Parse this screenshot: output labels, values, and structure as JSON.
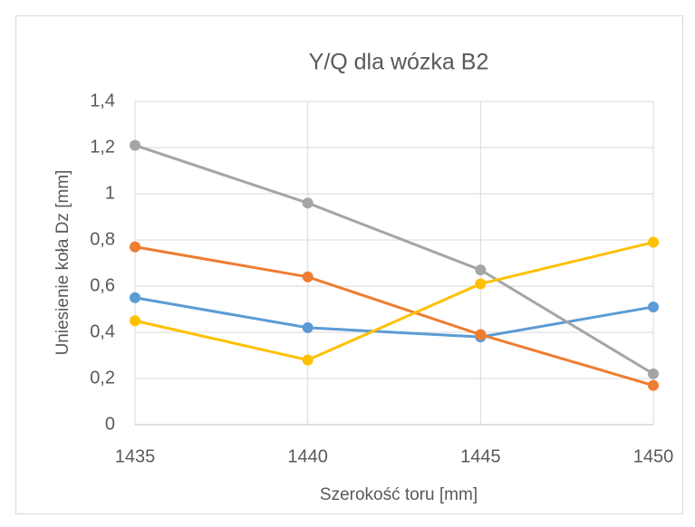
{
  "chart_data": {
    "type": "line",
    "title": "Y/Q dla wózka B2",
    "xlabel": "Szerokość toru [mm]",
    "ylabel": "Uniesienie koła Dz [mm]",
    "x": [
      1435,
      1440,
      1445,
      1450
    ],
    "xlim": [
      1435,
      1450
    ],
    "xticks": [
      1435,
      1440,
      1445,
      1450
    ],
    "ylim": [
      0,
      1.4
    ],
    "yticks": [
      0,
      {
        "value": 0.2,
        "label": "0,2"
      },
      {
        "value": 0.4,
        "label": "0,4"
      },
      {
        "value": 0.6,
        "label": "0,6"
      },
      {
        "value": 0.8,
        "label": "0,8"
      },
      1,
      {
        "value": 1.2,
        "label": "1,2"
      },
      {
        "value": 1.4,
        "label": "1,4"
      }
    ],
    "grid": true,
    "series": [
      {
        "color": "#5b9bd5",
        "values": [
          0.55,
          0.42,
          0.38,
          0.51
        ]
      },
      {
        "color": "#ed7d31",
        "values": [
          0.77,
          0.64,
          0.39,
          0.17
        ]
      },
      {
        "color": "#a5a5a5",
        "values": [
          1.21,
          0.96,
          0.67,
          0.22
        ]
      },
      {
        "color": "#ffc000",
        "values": [
          0.45,
          0.28,
          0.61,
          0.79
        ]
      }
    ]
  }
}
